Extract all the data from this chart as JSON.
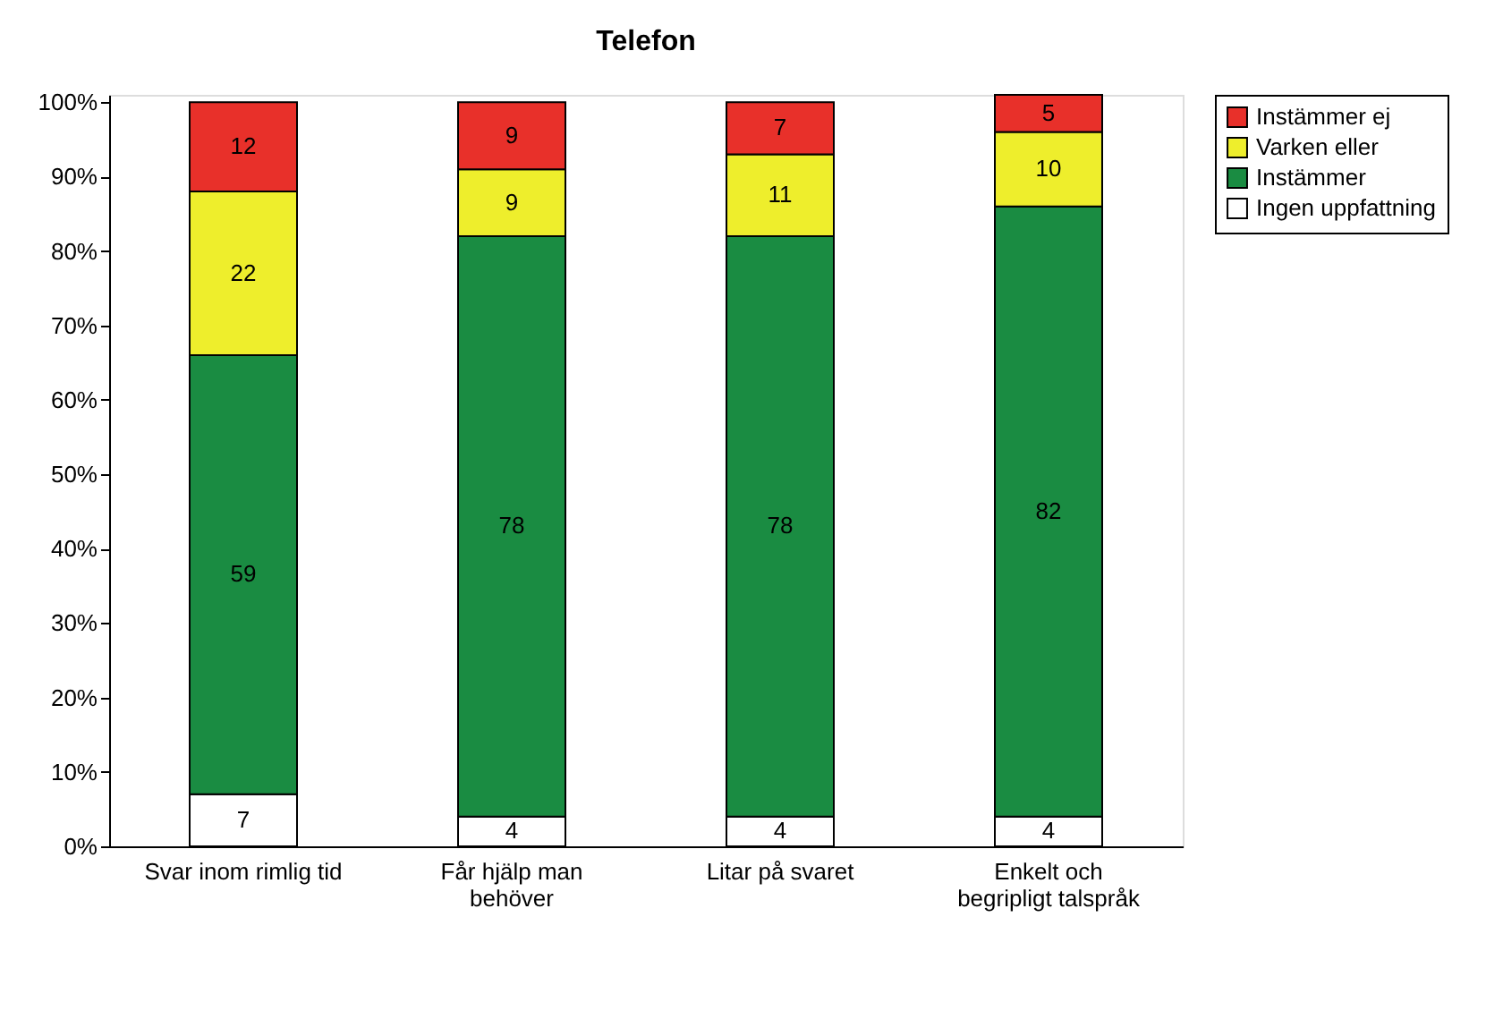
{
  "chart_data": {
    "type": "bar",
    "stacked": true,
    "title": "Telefon",
    "categories": [
      "Svar inom rimlig tid",
      "Får hjälp man\nbehöver",
      "Litar på svaret",
      "Enkelt och\nbegripligt talspråk"
    ],
    "series": [
      {
        "name": "Ingen uppfattning",
        "color": "#ffffff",
        "values": [
          7,
          4,
          4,
          4
        ]
      },
      {
        "name": "Instämmer",
        "color": "#1a8c42",
        "values": [
          59,
          78,
          78,
          82
        ]
      },
      {
        "name": "Varken eller",
        "color": "#eeee2c",
        "values": [
          22,
          9,
          11,
          10
        ]
      },
      {
        "name": "Instämmer ej",
        "color": "#e8302a",
        "values": [
          12,
          9,
          7,
          5
        ]
      }
    ],
    "ylim": [
      0,
      101
    ],
    "yticks": [
      {
        "value": 0,
        "label": "0%"
      },
      {
        "value": 10,
        "label": "10%"
      },
      {
        "value": 20,
        "label": "20%"
      },
      {
        "value": 30,
        "label": "30%"
      },
      {
        "value": 40,
        "label": "40%"
      },
      {
        "value": 50,
        "label": "50%"
      },
      {
        "value": 60,
        "label": "60%"
      },
      {
        "value": 70,
        "label": "70%"
      },
      {
        "value": 80,
        "label": "80%"
      },
      {
        "value": 90,
        "label": "90%"
      },
      {
        "value": 100,
        "label": "100%"
      }
    ],
    "data_labels": true,
    "grid": false,
    "legend": "right"
  }
}
